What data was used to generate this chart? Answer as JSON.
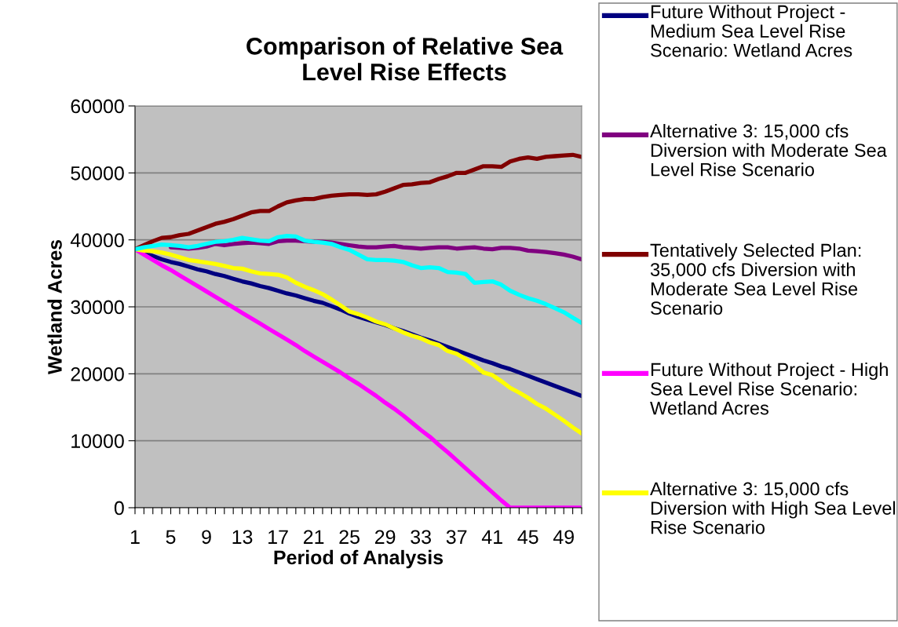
{
  "chart_data": {
    "type": "line",
    "title": "Comparison of Relative Sea Level Rise Effects",
    "xlabel": "Period of Analysis",
    "ylabel": "Wetland Acres",
    "categories": [
      "1",
      null,
      null,
      null,
      "5",
      null,
      null,
      null,
      "9",
      null,
      null,
      null,
      "13",
      null,
      null,
      null,
      "17",
      null,
      null,
      null,
      "21",
      null,
      null,
      null,
      "25",
      null,
      null,
      null,
      "29",
      null,
      null,
      null,
      "33",
      null,
      null,
      null,
      "37",
      null,
      null,
      null,
      "41",
      null,
      null,
      null,
      "45",
      null,
      null,
      null,
      "49",
      null,
      null
    ],
    "ylim": [
      0,
      60000
    ],
    "yticks": [
      0,
      10000,
      20000,
      30000,
      40000,
      50000,
      60000
    ],
    "grid": "y",
    "legend": "right",
    "series": [
      {
        "name": "Future Without Project - Medium Sea Level Rise Scenario: Wetland Acres",
        "color": "#000080",
        "values": [
          38600,
          38100,
          37600,
          37100,
          36700,
          36400,
          36000,
          35600,
          35300,
          34900,
          34600,
          34200,
          33800,
          33500,
          33100,
          32800,
          32400,
          32000,
          31700,
          31300,
          30900,
          30600,
          30100,
          29600,
          29000,
          28500,
          28100,
          27700,
          27300,
          26800,
          26400,
          25900,
          25400,
          25000,
          24500,
          24000,
          23500,
          23000,
          22500,
          22000,
          21600,
          21100,
          20700,
          20200,
          19700,
          19200,
          18700,
          18200,
          17700,
          17200,
          16700
        ]
      },
      {
        "name": "Alternative 3: 15,000 cfs Diversion with Moderate Sea Level Rise Scenario",
        "color": "#800080",
        "values": [
          null,
          null,
          null,
          null,
          38900,
          38800,
          38700,
          38800,
          39000,
          39400,
          39200,
          39400,
          39500,
          39600,
          39500,
          39400,
          39800,
          39900,
          39900,
          39800,
          39700,
          39700,
          39600,
          39400,
          39200,
          39000,
          38900,
          38900,
          39000,
          39100,
          38900,
          38800,
          38700,
          38800,
          38900,
          38900,
          38700,
          38800,
          38900,
          38700,
          38600,
          38800,
          38800,
          38700,
          38400,
          38300,
          38200,
          38000,
          37800,
          37500,
          37100
        ]
      },
      {
        "name": "Tentatively Selected Plan: 35,000 cfs Diversion with Moderate Sea Level Rise Scenario",
        "color": "#800000",
        "values": [
          38600,
          39200,
          39800,
          40300,
          40400,
          40700,
          40900,
          41400,
          41900,
          42400,
          42700,
          43100,
          43600,
          44100,
          44300,
          44300,
          45000,
          45600,
          45900,
          46100,
          46100,
          46400,
          46600,
          46700,
          46800,
          46800,
          46700,
          46800,
          47200,
          47700,
          48200,
          48300,
          48500,
          48600,
          49100,
          49500,
          50000,
          50000,
          50500,
          51000,
          51000,
          50900,
          51700,
          52100,
          52300,
          52100,
          52400,
          52500,
          52600,
          52700,
          52400
        ]
      },
      {
        "name": "Future Without Project - High Sea Level Rise Scenario: Wetland Acres",
        "color": "#ff00ff",
        "values": [
          38600,
          37800,
          37000,
          36200,
          35500,
          34700,
          33900,
          33100,
          32300,
          31500,
          30700,
          29900,
          29100,
          28300,
          27500,
          26700,
          25900,
          25100,
          24300,
          23400,
          22600,
          21800,
          21000,
          20200,
          19300,
          18500,
          17600,
          16700,
          15700,
          14800,
          13800,
          12700,
          11600,
          10600,
          9400,
          8300,
          7100,
          5900,
          4700,
          3500,
          2300,
          1100,
          0,
          0,
          0,
          0,
          0,
          0,
          0,
          0,
          0
        ]
      },
      {
        "name": "Alternative 3: 15,000 cfs Diversion with High Sea Level Rise Scenario",
        "color": "#ffff00",
        "values": [
          38600,
          38400,
          38300,
          38100,
          37800,
          37400,
          37000,
          36800,
          36600,
          36400,
          36100,
          35800,
          35700,
          35300,
          35000,
          34900,
          34800,
          34400,
          33600,
          33000,
          32500,
          31900,
          31100,
          30200,
          29300,
          28900,
          28400,
          27800,
          27400,
          26800,
          26200,
          25700,
          25300,
          24700,
          24300,
          23400,
          23000,
          22200,
          21300,
          20200,
          19800,
          18900,
          17900,
          17200,
          16400,
          15500,
          14800,
          13900,
          13000,
          12000,
          11100
        ]
      },
      {
        "color": "#00ffff",
        "values": [
          38600,
          38900,
          39100,
          39300,
          39200,
          39100,
          38900,
          39100,
          39400,
          39700,
          39800,
          40000,
          40300,
          40100,
          39900,
          39800,
          40400,
          40600,
          40500,
          39900,
          39700,
          39600,
          39400,
          38900,
          38500,
          37800,
          37100,
          37000,
          37000,
          36900,
          36700,
          36200,
          35800,
          35900,
          35800,
          35200,
          35100,
          34900,
          33600,
          33700,
          33800,
          33300,
          32400,
          31800,
          31300,
          30900,
          30400,
          29800,
          29200,
          28400,
          27600
        ]
      }
    ]
  }
}
